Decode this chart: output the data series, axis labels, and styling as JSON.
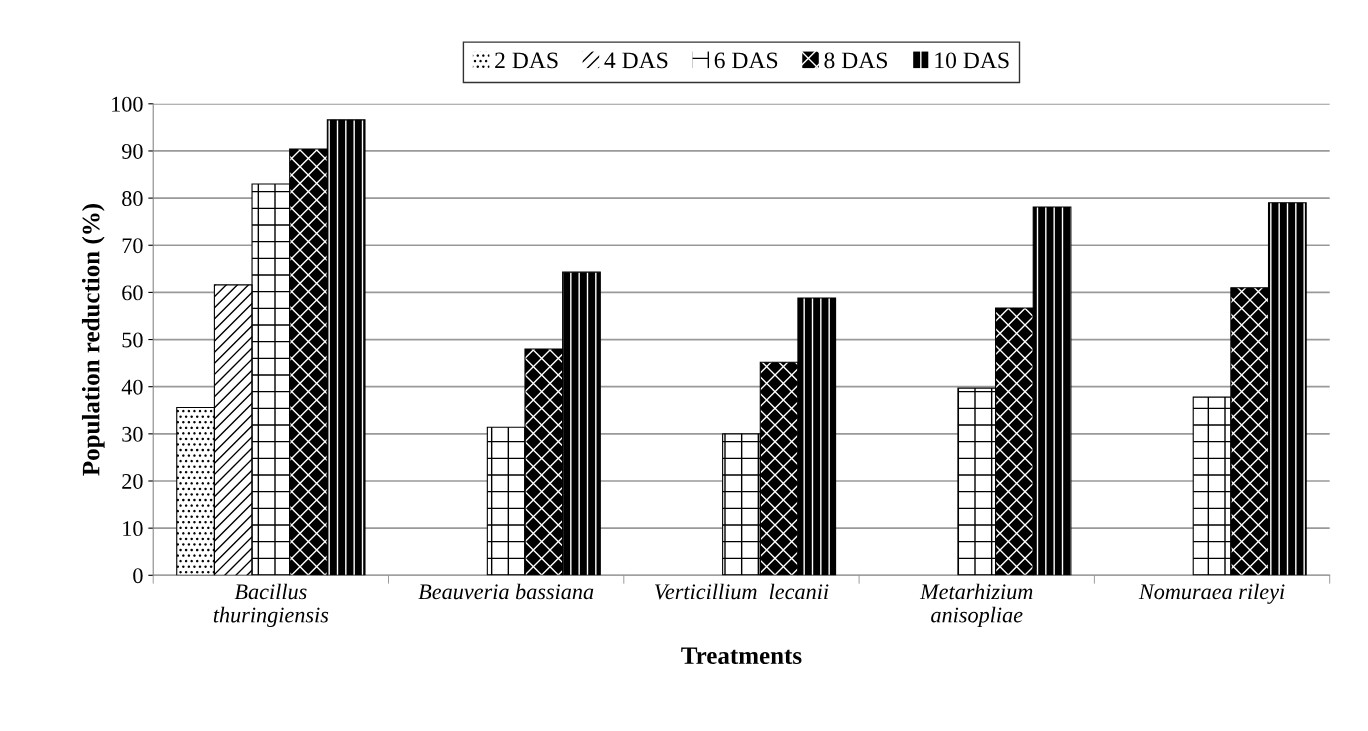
{
  "chart_data": {
    "type": "bar",
    "xlabel": "Treatments",
    "ylabel": "Population reduction (%)",
    "categories": [
      "Bacillus\nthuringiensis",
      "Beauveria bassiana",
      "Verticillium  lecanii",
      "Metarhizium\nanisopliae",
      "Nomuraea rileyi"
    ],
    "series": [
      {
        "name": "2 DAS",
        "color": "#ffffff",
        "values": [
          35.6,
          null,
          null,
          null,
          null
        ]
      },
      {
        "name": "4 DAS",
        "color": "#ffffff",
        "values": [
          61.6,
          null,
          null,
          null,
          null
        ]
      },
      {
        "name": "6 DAS",
        "color": "#ffffff",
        "values": [
          83,
          31.4,
          30,
          39.7,
          37.8
        ]
      },
      {
        "name": "8 DAS",
        "color": "#000000",
        "values": [
          90.4,
          48,
          45.2,
          56.7,
          61
        ]
      },
      {
        "name": "10 DAS",
        "color": "#000000",
        "values": [
          96.6,
          64.3,
          58.8,
          78.1,
          79
        ]
      }
    ],
    "ylim": [
      0,
      100
    ],
    "yticks": [
      0,
      10,
      20,
      30,
      40,
      50,
      60,
      70,
      80,
      90,
      100
    ],
    "grid": "y",
    "legend": "top"
  }
}
